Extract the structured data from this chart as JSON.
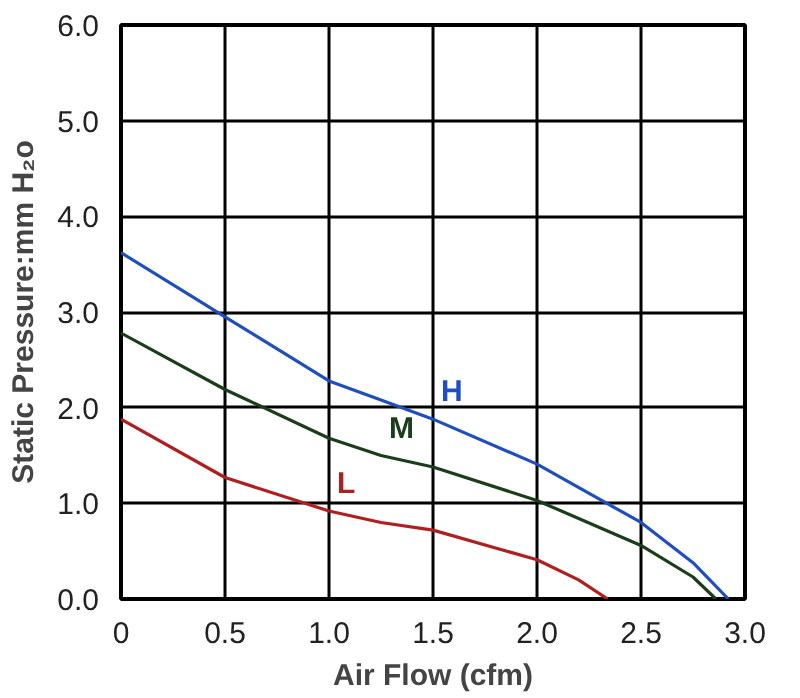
{
  "chart_data": {
    "type": "line",
    "xlabel": "Air Flow (cfm)",
    "ylabel": "Static Pressure:mm H₂o",
    "xlim": [
      0,
      3.0
    ],
    "ylim": [
      0,
      6.0
    ],
    "xticks": [
      0,
      0.5,
      {
        "value": 1,
        "label": "1.0"
      },
      1.5,
      {
        "value": 2,
        "label": "2.0"
      },
      2.5,
      {
        "value": 3,
        "label": "3.0"
      }
    ],
    "yticks": [
      {
        "value": 0,
        "label": "0.0"
      },
      {
        "value": 1,
        "label": "1.0"
      },
      {
        "value": 2,
        "label": "2.0"
      },
      {
        "value": 3,
        "label": "3.0"
      },
      {
        "value": 4,
        "label": "4.0"
      },
      {
        "value": 5,
        "label": "5.0"
      },
      {
        "value": 6,
        "label": "6.0"
      }
    ],
    "grid": true,
    "marker": "none",
    "line_style": "solid",
    "series": [
      {
        "name": "H",
        "color": "#1f4fbf",
        "x": [
          0,
          0.5,
          1.0,
          1.25,
          1.5,
          2.0,
          2.5,
          2.75,
          2.92
        ],
        "values": [
          3.62,
          2.95,
          2.28,
          2.08,
          1.88,
          1.41,
          0.8,
          0.38,
          0
        ]
      },
      {
        "name": "M",
        "color": "#1a3d1a",
        "x": [
          0,
          0.5,
          1.0,
          1.25,
          1.5,
          2.0,
          2.5,
          2.75,
          2.86
        ],
        "values": [
          2.78,
          2.19,
          1.68,
          1.5,
          1.38,
          1.03,
          0.56,
          0.23,
          0
        ]
      },
      {
        "name": "L",
        "color": "#b01f1f",
        "x": [
          0,
          0.5,
          1.0,
          1.25,
          1.5,
          2.0,
          2.2,
          2.34
        ],
        "values": [
          1.88,
          1.27,
          0.92,
          0.8,
          0.72,
          0.41,
          0.2,
          0
        ]
      }
    ]
  }
}
